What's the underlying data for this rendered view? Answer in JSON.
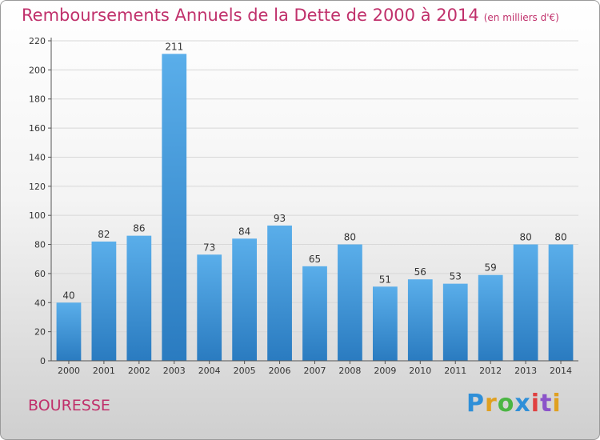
{
  "header": {
    "title": "Remboursements Annuels de la Dette de 2000 à 2014",
    "subtitle": "(en milliers d'€)"
  },
  "footer": {
    "commune": "BOURESSE",
    "logo": "Proxiti"
  },
  "colors": {
    "bar_top": "#5aaeea",
    "bar_bottom": "#2a7bc0",
    "title": "#c0306b",
    "grid": "#d8d8d8"
  },
  "chart_data": {
    "type": "bar",
    "title": "Remboursements Annuels de la Dette de 2000 à 2014",
    "categories": [
      "2000",
      "2001",
      "2002",
      "2003",
      "2004",
      "2005",
      "2006",
      "2007",
      "2008",
      "2009",
      "2010",
      "2011",
      "2012",
      "2013",
      "2014"
    ],
    "values": [
      40,
      82,
      86,
      211,
      73,
      84,
      93,
      65,
      80,
      51,
      56,
      53,
      59,
      80,
      80
    ],
    "ylim": [
      0,
      220
    ],
    "yticks": [
      0,
      20,
      40,
      60,
      80,
      100,
      120,
      140,
      160,
      180,
      200,
      220
    ],
    "grid": true,
    "data_labels": true
  }
}
